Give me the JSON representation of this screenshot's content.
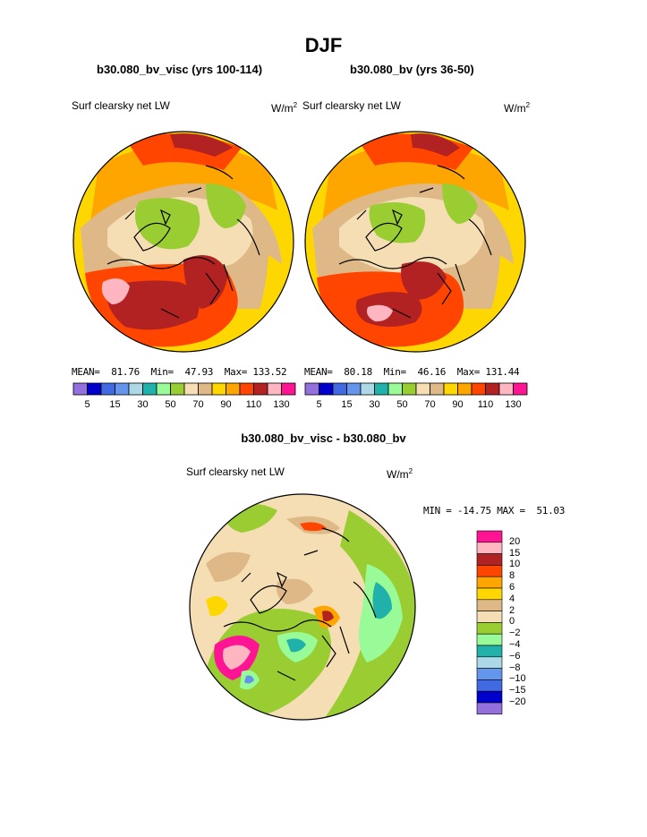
{
  "page_title": "DJF",
  "panels": [
    {
      "case_title": "b30.080_bv_visc (yrs 100-114)",
      "variable": "Surf clearsky net LW",
      "units": "W/m",
      "units_sup": "2",
      "stats": {
        "mean_label": "MEAN=",
        "mean": "81.76",
        "min_label": "Min=",
        "min": "47.93",
        "max_label": "Max=",
        "max": "133.52"
      }
    },
    {
      "case_title": "b30.080_bv (yrs 36-50)",
      "variable": "Surf clearsky net LW",
      "units": "W/m",
      "units_sup": "2",
      "stats": {
        "mean_label": "MEAN=",
        "mean": "80.18",
        "min_label": "Min=",
        "min": "46.16",
        "max_label": "Max=",
        "max": "131.44"
      }
    }
  ],
  "diff_panel": {
    "case_title": "b30.080_bv_visc - b30.080_bv",
    "variable": "Surf clearsky net LW",
    "units": "W/m",
    "units_sup": "2",
    "stats_text": "MIN = -14.75 MAX =  51.03"
  },
  "colorbar_abs": {
    "colors": [
      "#9370db",
      "#0000cd",
      "#4169e1",
      "#6495ed",
      "#add8e6",
      "#20b2aa",
      "#98fb98",
      "#9acd32",
      "#f5deb3",
      "#deb887",
      "#ffd700",
      "#ffa500",
      "#ff4500",
      "#b22222",
      "#ffb6c1",
      "#ff1493"
    ],
    "labels": [
      "5",
      "15",
      "30",
      "50",
      "70",
      "90",
      "110",
      "130"
    ]
  },
  "colorbar_diff": {
    "colors": [
      "#ff1493",
      "#ffb6c1",
      "#b22222",
      "#ff4500",
      "#ffa500",
      "#ffd700",
      "#deb887",
      "#f5deb3",
      "#9acd32",
      "#98fb98",
      "#20b2aa",
      "#add8e6",
      "#6495ed",
      "#4169e1",
      "#0000cd",
      "#9370db"
    ],
    "labels": [
      "20",
      "15",
      "10",
      "8",
      "6",
      "4",
      "2",
      "0",
      "−2",
      "−4",
      "−6",
      "−8",
      "−10",
      "−15",
      "−20"
    ]
  }
}
